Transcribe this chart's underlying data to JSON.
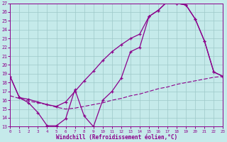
{
  "xlabel": "Windchill (Refroidissement éolien,°C)",
  "xlim": [
    0,
    23
  ],
  "ylim": [
    13,
    27
  ],
  "xticks": [
    0,
    1,
    2,
    3,
    4,
    5,
    6,
    7,
    8,
    9,
    10,
    11,
    12,
    13,
    14,
    15,
    16,
    17,
    18,
    19,
    20,
    21,
    22,
    23
  ],
  "yticks": [
    13,
    14,
    15,
    16,
    17,
    18,
    19,
    20,
    21,
    22,
    23,
    24,
    25,
    26,
    27
  ],
  "line_color": "#8b008b",
  "bg_color": "#c5eaea",
  "grid_color": "#9ec8c8",
  "line1_x": [
    0,
    1,
    2,
    3,
    4,
    5,
    6,
    7,
    8,
    9,
    10,
    11,
    12,
    13,
    14,
    15,
    16,
    17,
    18,
    19,
    20,
    21,
    22,
    23
  ],
  "line1_y": [
    18.7,
    16.3,
    16.1,
    15.8,
    15.5,
    15.3,
    15.8,
    17.0,
    18.2,
    19.3,
    20.5,
    21.5,
    22.3,
    23.0,
    23.5,
    25.5,
    26.2,
    27.2,
    27.0,
    26.8,
    25.2,
    22.7,
    19.2,
    18.7
  ],
  "line2_x": [
    0,
    1,
    2,
    3,
    4,
    5,
    6,
    7,
    8,
    9,
    10,
    11,
    12,
    13,
    14,
    15,
    16,
    17,
    18,
    19,
    20,
    21,
    22,
    23
  ],
  "line2_y": [
    18.7,
    16.3,
    15.7,
    14.6,
    13.1,
    13.1,
    13.9,
    17.2,
    14.2,
    13.0,
    16.0,
    17.0,
    18.5,
    21.5,
    22.0,
    25.5,
    26.2,
    27.2,
    27.0,
    26.8,
    25.2,
    22.7,
    19.2,
    18.7
  ],
  "line3_x": [
    0,
    1,
    2,
    3,
    4,
    5,
    6,
    7,
    8,
    9,
    10,
    11,
    12,
    13,
    14,
    15,
    16,
    17,
    18,
    19,
    20,
    21,
    22,
    23
  ],
  "line3_y": [
    16.5,
    16.2,
    15.9,
    15.7,
    15.5,
    15.2,
    15.0,
    15.1,
    15.3,
    15.5,
    15.7,
    16.0,
    16.2,
    16.5,
    16.7,
    17.0,
    17.3,
    17.5,
    17.8,
    18.0,
    18.2,
    18.4,
    18.6,
    18.7
  ]
}
